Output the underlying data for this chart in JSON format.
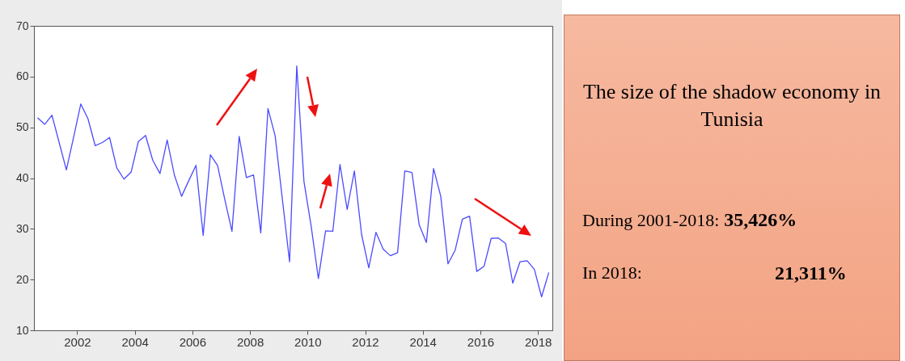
{
  "chart_data": [
    {
      "type": "line",
      "color": "#4b4bff",
      "xlim": [
        2001,
        2019
      ],
      "ylim": [
        10,
        70
      ],
      "yticks": [
        10,
        20,
        30,
        40,
        50,
        60,
        70
      ],
      "xticks": [
        {
          "value": 2002.5,
          "label": "2002"
        },
        {
          "value": 2004.5,
          "label": "2004"
        },
        {
          "value": 2006.5,
          "label": "2006"
        },
        {
          "value": 2008.5,
          "label": "2008"
        },
        {
          "value": 2010.5,
          "label": "2010"
        },
        {
          "value": 2012.5,
          "label": "2012"
        },
        {
          "value": 2014.5,
          "label": "2014"
        },
        {
          "value": 2016.5,
          "label": "2016"
        },
        {
          "value": 2018.5,
          "label": "2018"
        }
      ],
      "x": [
        2001.125,
        2001.375,
        2001.625,
        2001.875,
        2002.125,
        2002.375,
        2002.625,
        2002.875,
        2003.125,
        2003.375,
        2003.625,
        2003.875,
        2004.125,
        2004.375,
        2004.625,
        2004.875,
        2005.125,
        2005.375,
        2005.625,
        2005.875,
        2006.125,
        2006.375,
        2006.625,
        2006.875,
        2007.125,
        2007.375,
        2007.625,
        2007.875,
        2008.125,
        2008.375,
        2008.625,
        2008.875,
        2009.125,
        2009.375,
        2009.625,
        2009.875,
        2010.125,
        2010.375,
        2010.625,
        2010.875,
        2011.125,
        2011.375,
        2011.625,
        2011.875,
        2012.125,
        2012.375,
        2012.625,
        2012.875,
        2013.125,
        2013.375,
        2013.625,
        2013.875,
        2014.125,
        2014.375,
        2014.625,
        2014.875,
        2015.125,
        2015.375,
        2015.625,
        2015.875,
        2016.125,
        2016.375,
        2016.625,
        2016.875,
        2017.125,
        2017.375,
        2017.625,
        2017.875,
        2018.125,
        2018.375,
        2018.625,
        2018.875
      ],
      "values": [
        51.9,
        50.6,
        52.4,
        47.0,
        41.6,
        48.0,
        54.6,
        51.7,
        46.4,
        47.0,
        48.0,
        42.0,
        39.8,
        41.2,
        47.2,
        48.4,
        43.5,
        40.9,
        47.5,
        40.6,
        36.4,
        39.5,
        42.5,
        28.7,
        44.6,
        42.5,
        35.8,
        29.5,
        48.2,
        40.1,
        40.6,
        29.2,
        53.7,
        48.3,
        35.8,
        23.5,
        62.1,
        39.3,
        30.5,
        20.2,
        29.6,
        29.5,
        42.7,
        33.8,
        41.4,
        28.9,
        22.3,
        29.3,
        26.0,
        24.7,
        25.3,
        41.4,
        41.1,
        30.8,
        27.3,
        41.9,
        36.4,
        23.1,
        25.8,
        31.9,
        32.5,
        21.6,
        22.6,
        28.1,
        28.2,
        27.1,
        19.3,
        23.5,
        23.7,
        22.0,
        16.6,
        21.4
      ],
      "grid": false
    },
    {
      "type": "other",
      "title": "The size of the shadow economy in Tunisia",
      "annotations": [
        "During 2001-2018:",
        "35,426%",
        "In 2018:",
        "21,311%"
      ]
    }
  ]
}
